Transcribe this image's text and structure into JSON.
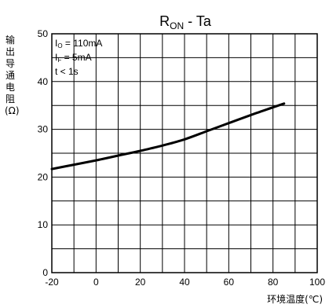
{
  "chart_data": {
    "type": "line",
    "title_main": "R",
    "title_sub": "ON",
    "title_rest": " - Ta",
    "ylabel": "输出导通电阻(Ω)",
    "xlabel": "环境温度(℃)",
    "xlim": [
      -20,
      100
    ],
    "ylim": [
      0,
      50
    ],
    "xticks": [
      -20,
      0,
      20,
      40,
      60,
      80,
      100
    ],
    "yticks": [
      0,
      10,
      20,
      30,
      40,
      50
    ],
    "grid": true,
    "legend": [
      {
        "main": "I",
        "sub": "O",
        "rest": " = 110mA"
      },
      {
        "main": "I",
        "sub": "F",
        "rest": " = 5mA"
      },
      {
        "main": "t < 1s",
        "sub": "",
        "rest": ""
      }
    ],
    "series": [
      {
        "x": [
          -20,
          -10,
          0,
          10,
          20,
          30,
          40,
          50,
          60,
          70,
          80,
          85
        ],
        "values": [
          21.7,
          22.6,
          23.5,
          24.5,
          25.5,
          26.6,
          27.9,
          29.6,
          31.3,
          33.0,
          34.6,
          35.4
        ]
      }
    ]
  }
}
